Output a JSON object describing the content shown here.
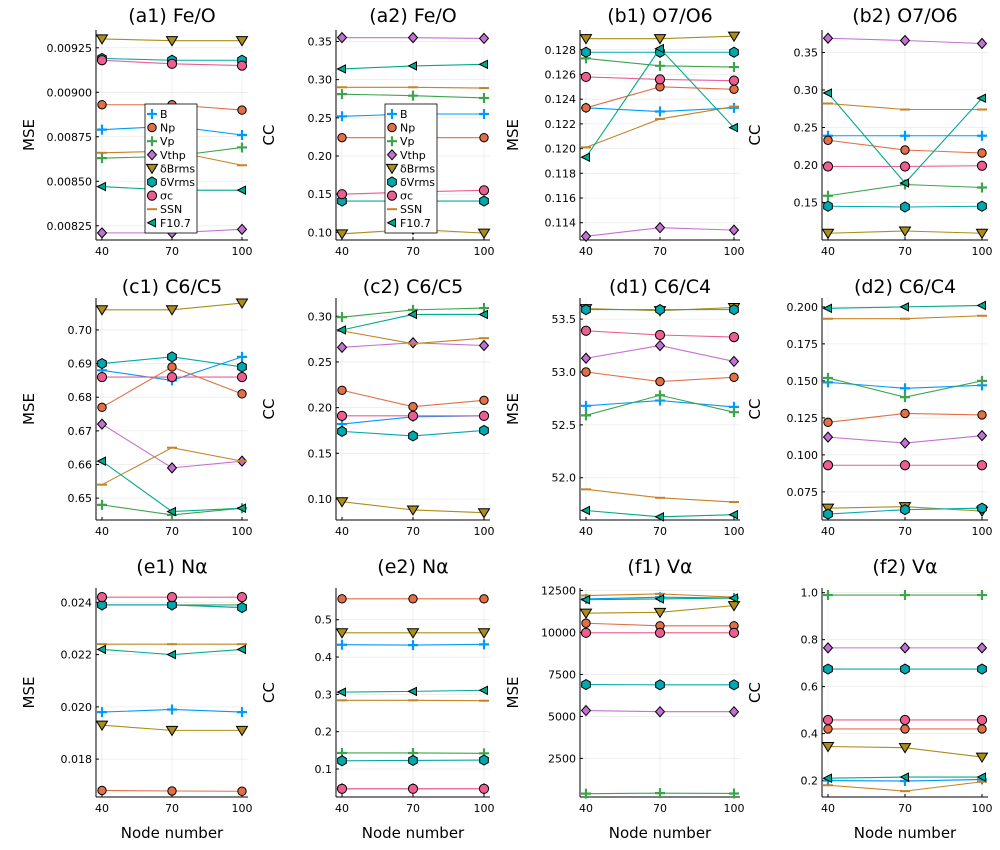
{
  "chart_data": {
    "type": "line",
    "x": [
      40,
      70,
      100
    ],
    "series_colors": {
      "B": "#009af9",
      "Np": "#e26f46",
      "Vp": "#3da44d",
      "Vthp": "#c271d2",
      "δBrms": "#ac8d18",
      "δVrms": "#00a9ad",
      "σc": "#ed5d92",
      "SSN": "#c68225",
      "F10.7": "#00a98d"
    },
    "series_markers": {
      "B": "plus",
      "Np": "circle",
      "Vp": "plus",
      "Vthp": "diamond",
      "δBrms": "triangle",
      "δVrms": "hexagon",
      "σc": "octagon",
      "SSN": "hline",
      "F10.7": "ltriangle"
    },
    "legend": {
      "entries": [
        "B",
        "Np",
        "Vp",
        "Vthp",
        "δBrms",
        "δVrms",
        "σc",
        "SSN",
        "F10.7"
      ],
      "placement": "inside, panels a1 and a2"
    },
    "panels": [
      {
        "id": "a1",
        "title": "(a1)   Fe/O",
        "ylabel": "MSE",
        "xlabel": "",
        "legend": true,
        "yticks": [
          0.00825,
          0.0085,
          0.00875,
          0.009,
          0.00925
        ],
        "yticklabels": [
          "0.00825",
          "0.00850",
          "0.00875",
          "0.00900",
          "0.00925"
        ],
        "ylim": [
          0.00817,
          0.00935
        ],
        "series": {
          "B": [
            0.00879,
            0.00881,
            0.00876
          ],
          "Np": [
            0.00893,
            0.00893,
            0.0089
          ],
          "Vp": [
            0.00863,
            0.00864,
            0.00869
          ],
          "Vthp": [
            0.00821,
            0.00821,
            0.00823
          ],
          "δBrms": [
            0.0093,
            0.00929,
            0.00929
          ],
          "δVrms": [
            0.00919,
            0.00918,
            0.00918
          ],
          "σc": [
            0.00918,
            0.00916,
            0.00915
          ],
          "SSN": [
            0.00866,
            0.00867,
            0.00859
          ],
          "F10.7": [
            0.00847,
            0.00845,
            0.00845
          ]
        }
      },
      {
        "id": "a2",
        "title": "(a2)   Fe/O",
        "ylabel": "CC",
        "xlabel": "",
        "legend": true,
        "yticks": [
          0.1,
          0.15,
          0.2,
          0.25,
          0.3,
          0.35
        ],
        "yticklabels": [
          "0.10",
          "0.15",
          "0.20",
          "0.25",
          "0.30",
          "0.35"
        ],
        "ylim": [
          0.09,
          0.365
        ],
        "series": {
          "B": [
            0.252,
            0.255,
            0.255
          ],
          "Np": [
            0.224,
            0.224,
            0.224
          ],
          "Vp": [
            0.281,
            0.279,
            0.276
          ],
          "Vthp": [
            0.355,
            0.355,
            0.354
          ],
          "δBrms": [
            0.098,
            0.104,
            0.099
          ],
          "δVrms": [
            0.141,
            0.141,
            0.141
          ],
          "σc": [
            0.15,
            0.153,
            0.155
          ],
          "SSN": [
            0.29,
            0.29,
            0.289
          ],
          "F10.7": [
            0.314,
            0.318,
            0.32
          ]
        }
      },
      {
        "id": "b1",
        "title": "(b1)   O7/O6",
        "ylabel": "MSE",
        "xlabel": "",
        "legend": false,
        "yticks": [
          0.114,
          0.116,
          0.118,
          0.12,
          0.122,
          0.124,
          0.126,
          0.128
        ],
        "yticklabels": [
          "0.114",
          "0.116",
          "0.118",
          "0.120",
          "0.122",
          "0.124",
          "0.126",
          "0.128"
        ],
        "ylim": [
          0.1126,
          0.1296
        ],
        "series": {
          "B": [
            0.1233,
            0.123,
            0.1233
          ],
          "Np": [
            0.1233,
            0.125,
            0.1248
          ],
          "Vp": [
            0.1273,
            0.1267,
            0.1266
          ],
          "Vthp": [
            0.1129,
            0.1136,
            0.1134
          ],
          "δBrms": [
            0.1289,
            0.1289,
            0.1291
          ],
          "δVrms": [
            0.1278,
            0.1278,
            0.1278
          ],
          "σc": [
            0.1258,
            0.1256,
            0.1255
          ],
          "SSN": [
            0.1201,
            0.1224,
            0.1234
          ],
          "F10.7": [
            0.1193,
            0.1281,
            0.1217
          ]
        }
      },
      {
        "id": "b2",
        "title": "(b2)   O7/O6",
        "ylabel": "CC",
        "xlabel": "",
        "legend": false,
        "yticks": [
          0.15,
          0.2,
          0.25,
          0.3,
          0.35
        ],
        "yticklabels": [
          "0.15",
          "0.20",
          "0.25",
          "0.30",
          "0.35"
        ],
        "ylim": [
          0.1,
          0.38
        ],
        "series": {
          "B": [
            0.239,
            0.239,
            0.239
          ],
          "Np": [
            0.233,
            0.22,
            0.216
          ],
          "Vp": [
            0.159,
            0.174,
            0.17
          ],
          "Vthp": [
            0.369,
            0.366,
            0.362
          ],
          "δBrms": [
            0.109,
            0.112,
            0.109
          ],
          "δVrms": [
            0.145,
            0.144,
            0.145
          ],
          "σc": [
            0.198,
            0.198,
            0.199
          ],
          "SSN": [
            0.282,
            0.274,
            0.274
          ],
          "F10.7": [
            0.296,
            0.176,
            0.289
          ]
        }
      },
      {
        "id": "c1",
        "title": "(c1)   C6/C5",
        "ylabel": "MSE",
        "xlabel": "",
        "legend": false,
        "yticks": [
          0.65,
          0.66,
          0.67,
          0.68,
          0.69,
          0.7
        ],
        "yticklabels": [
          "0.65",
          "0.66",
          "0.67",
          "0.68",
          "0.69",
          "0.70"
        ],
        "ylim": [
          0.6435,
          0.7095
        ],
        "series": {
          "B": [
            0.688,
            0.685,
            0.692
          ],
          "Np": [
            0.677,
            0.689,
            0.681
          ],
          "Vp": [
            0.648,
            0.645,
            0.647
          ],
          "Vthp": [
            0.672,
            0.659,
            0.661
          ],
          "δBrms": [
            0.706,
            0.706,
            0.708
          ],
          "δVrms": [
            0.69,
            0.692,
            0.689
          ],
          "σc": [
            0.686,
            0.686,
            0.686
          ],
          "SSN": [
            0.654,
            0.665,
            0.661
          ],
          "F10.7": [
            0.661,
            0.646,
            0.647
          ]
        }
      },
      {
        "id": "c2",
        "title": "(c2)   C6/C5",
        "ylabel": "CC",
        "xlabel": "",
        "legend": false,
        "yticks": [
          0.1,
          0.15,
          0.2,
          0.25,
          0.3
        ],
        "yticklabels": [
          "0.10",
          "0.15",
          "0.20",
          "0.25",
          "0.30"
        ],
        "ylim": [
          0.077,
          0.32
        ],
        "series": {
          "B": [
            0.182,
            0.19,
            0.191
          ],
          "Np": [
            0.219,
            0.201,
            0.208
          ],
          "Vp": [
            0.299,
            0.307,
            0.309
          ],
          "Vthp": [
            0.266,
            0.271,
            0.268
          ],
          "δBrms": [
            0.097,
            0.088,
            0.085
          ],
          "δVrms": [
            0.174,
            0.169,
            0.175
          ],
          "σc": [
            0.191,
            0.191,
            0.191
          ],
          "SSN": [
            0.284,
            0.27,
            0.276
          ],
          "F10.7": [
            0.285,
            0.302,
            0.302
          ]
        }
      },
      {
        "id": "d1",
        "title": "(d1)   C6/C4",
        "ylabel": "MSE",
        "xlabel": "",
        "legend": false,
        "yticks": [
          52.0,
          52.5,
          53.0,
          53.5
        ],
        "yticklabels": [
          "52.0",
          "52.5",
          "53.0",
          "53.5"
        ],
        "ylim": [
          51.6,
          53.7
        ],
        "series": {
          "B": [
            52.68,
            52.73,
            52.67
          ],
          "Np": [
            53.0,
            52.91,
            52.95
          ],
          "Vp": [
            52.59,
            52.78,
            52.62
          ],
          "Vthp": [
            53.13,
            53.25,
            53.1
          ],
          "δBrms": [
            53.6,
            53.58,
            53.61
          ],
          "δVrms": [
            53.59,
            53.59,
            53.59
          ],
          "σc": [
            53.39,
            53.35,
            53.33
          ],
          "SSN": [
            51.89,
            51.81,
            51.77
          ],
          "F10.7": [
            51.69,
            51.63,
            51.65
          ]
        }
      },
      {
        "id": "d2",
        "title": "(d2)   C6/C4",
        "ylabel": "CC",
        "xlabel": "",
        "legend": false,
        "yticks": [
          0.075,
          0.1,
          0.125,
          0.15,
          0.175,
          0.2
        ],
        "yticklabels": [
          "0.075",
          "0.100",
          "0.125",
          "0.150",
          "0.175",
          "0.200"
        ],
        "ylim": [
          0.056,
          0.206
        ],
        "series": {
          "B": [
            0.149,
            0.145,
            0.147
          ],
          "Np": [
            0.122,
            0.128,
            0.127
          ],
          "Vp": [
            0.152,
            0.139,
            0.15
          ],
          "Vthp": [
            0.112,
            0.108,
            0.113
          ],
          "δBrms": [
            0.064,
            0.065,
            0.062
          ],
          "δVrms": [
            0.06,
            0.063,
            0.064
          ],
          "σc": [
            0.093,
            0.093,
            0.093
          ],
          "SSN": [
            0.192,
            0.192,
            0.194
          ],
          "F10.7": [
            0.199,
            0.2,
            0.201
          ]
        }
      },
      {
        "id": "e1",
        "title": "(e1)   Nα",
        "ylabel": "MSE",
        "xlabel": "Node number",
        "legend": false,
        "yticks": [
          0.018,
          0.02,
          0.022,
          0.024
        ],
        "yticklabels": [
          "0.018",
          "0.020",
          "0.022",
          "0.024"
        ],
        "ylim": [
          0.01655,
          0.02455
        ],
        "series": {
          "B": [
            0.0198,
            0.0199,
            0.0198
          ],
          "Np": [
            0.0168,
            0.01678,
            0.01677
          ],
          "Vp": [
            0.0239,
            0.0239,
            0.0239
          ],
          "Vthp": [
            0.0239,
            0.0239,
            0.0238
          ],
          "δBrms": [
            0.0193,
            0.0191,
            0.0191
          ],
          "δVrms": [
            0.0239,
            0.0239,
            0.0238
          ],
          "σc": [
            0.0242,
            0.0242,
            0.0242
          ],
          "SSN": [
            0.0224,
            0.0224,
            0.0224
          ],
          "F10.7": [
            0.0222,
            0.022,
            0.0222
          ]
        }
      },
      {
        "id": "e2",
        "title": "(e2)   Nα",
        "ylabel": "CC",
        "xlabel": "Node number",
        "legend": false,
        "yticks": [
          0.1,
          0.2,
          0.3,
          0.4,
          0.5
        ],
        "yticklabels": [
          "0.1",
          "0.2",
          "0.3",
          "0.4",
          "0.5"
        ],
        "ylim": [
          0.025,
          0.585
        ],
        "series": {
          "B": [
            0.433,
            0.432,
            0.434
          ],
          "Np": [
            0.556,
            0.556,
            0.556
          ],
          "Vp": [
            0.143,
            0.143,
            0.142
          ],
          "Vthp": [
            0.047,
            0.047,
            0.047
          ],
          "δBrms": [
            0.465,
            0.465,
            0.465
          ],
          "δVrms": [
            0.122,
            0.123,
            0.124
          ],
          "σc": [
            0.047,
            0.047,
            0.047
          ],
          "SSN": [
            0.284,
            0.284,
            0.283
          ],
          "F10.7": [
            0.306,
            0.308,
            0.311
          ]
        }
      },
      {
        "id": "f1",
        "title": "(f1)   Vα",
        "ylabel": "MSE",
        "xlabel": "Node number",
        "legend": false,
        "yticks": [
          2500,
          5000,
          7500,
          10000,
          12500
        ],
        "yticklabels": [
          "2500",
          "5000",
          "7500",
          "10000",
          "12500"
        ],
        "ylim": [
          200,
          12650
        ],
        "series": {
          "B": [
            12000,
            12100,
            12050
          ],
          "Np": [
            10550,
            10400,
            10400
          ],
          "Vp": [
            400,
            430,
            410
          ],
          "Vthp": [
            5350,
            5280,
            5280
          ],
          "δBrms": [
            11150,
            11200,
            11600
          ],
          "δVrms": [
            6900,
            6880,
            6880
          ],
          "σc": [
            9980,
            9980,
            9980
          ],
          "SSN": [
            12200,
            12300,
            12100
          ],
          "F10.7": [
            11950,
            12000,
            12050
          ]
        }
      },
      {
        "id": "f2",
        "title": "(f2)   Vα",
        "ylabel": "CC",
        "xlabel": "Node number",
        "legend": false,
        "yticks": [
          0.2,
          0.4,
          0.6,
          0.8,
          1.0
        ],
        "yticklabels": [
          "0.2",
          "0.4",
          "0.6",
          "0.8",
          "1.0"
        ],
        "ylim": [
          0.13,
          1.02
        ],
        "series": {
          "B": [
            0.2,
            0.198,
            0.205
          ],
          "Np": [
            0.42,
            0.42,
            0.42
          ],
          "Vp": [
            0.99,
            0.99,
            0.99
          ],
          "Vthp": [
            0.765,
            0.765,
            0.765
          ],
          "δBrms": [
            0.345,
            0.34,
            0.3
          ],
          "δVrms": [
            0.675,
            0.675,
            0.675
          ],
          "σc": [
            0.458,
            0.458,
            0.458
          ],
          "SSN": [
            0.18,
            0.155,
            0.195
          ],
          "F10.7": [
            0.21,
            0.215,
            0.215
          ]
        }
      }
    ]
  }
}
